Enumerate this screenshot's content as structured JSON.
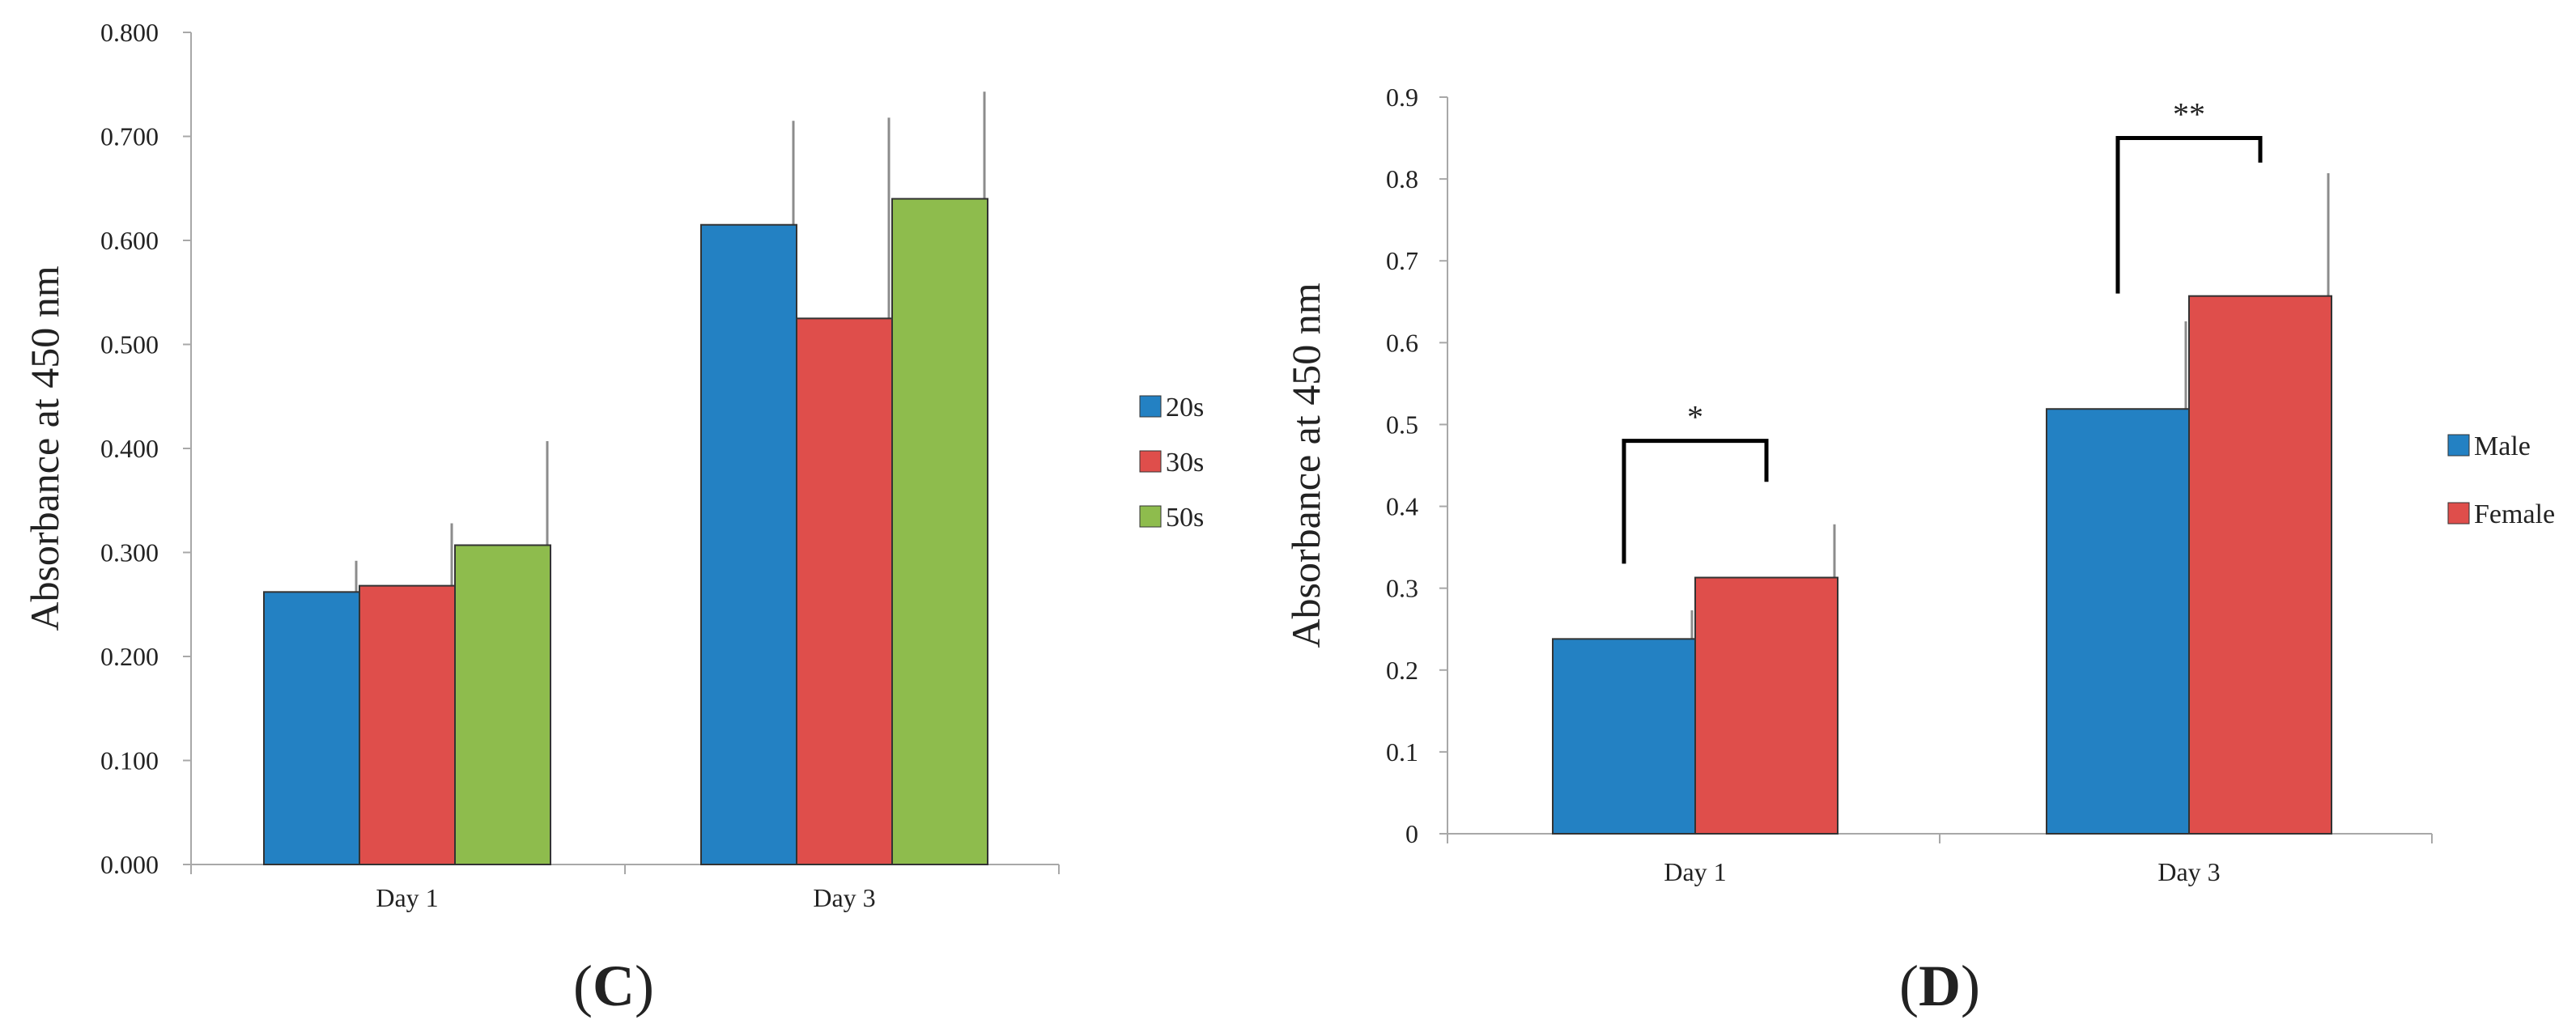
{
  "chart_data": [
    {
      "type": "bar",
      "panel_label": "(C)",
      "ylabel": "Absorbance at 450 nm",
      "xlabel": "",
      "categories": [
        "Day 1",
        "Day 3"
      ],
      "ylim": [
        0,
        0.8
      ],
      "ystep": 0.1,
      "ytick_labels": [
        "0.000",
        "0.100",
        "0.200",
        "0.300",
        "0.400",
        "0.500",
        "0.600",
        "0.700",
        "0.800"
      ],
      "legend_position": "right",
      "series": [
        {
          "name": "20s",
          "color": "#2381c3",
          "values": [
            0.262,
            0.615
          ],
          "errors": [
            0.03,
            0.1
          ]
        },
        {
          "name": "30s",
          "color": "#df4e4b",
          "values": [
            0.268,
            0.525
          ],
          "errors": [
            0.06,
            0.193
          ]
        },
        {
          "name": "50s",
          "color": "#8ebc4d",
          "values": [
            0.307,
            0.64
          ],
          "errors": [
            0.1,
            0.103
          ]
        }
      ],
      "annotations": []
    },
    {
      "type": "bar",
      "panel_label": "(D)",
      "ylabel": "Absorbance at 450 nm",
      "xlabel": "",
      "categories": [
        "Day 1",
        "Day 3"
      ],
      "ylim": [
        0,
        0.9
      ],
      "ystep": 0.1,
      "ytick_labels": [
        "0",
        "0.1",
        "0.2",
        "0.3",
        "0.4",
        "0.5",
        "0.6",
        "0.7",
        "0.8",
        "0.9"
      ],
      "legend_position": "right",
      "series": [
        {
          "name": "Male",
          "color": "#2381c3",
          "values": [
            0.238,
            0.519
          ],
          "errors": [
            0.035,
            0.107
          ]
        },
        {
          "name": "Female",
          "color": "#df4e4b",
          "values": [
            0.313,
            0.657
          ],
          "errors": [
            0.065,
            0.15
          ]
        }
      ],
      "annotations": [
        {
          "category": "Day 1",
          "label": "*",
          "y": 0.48,
          "start": 0.33,
          "end": 0.43
        },
        {
          "category": "Day 3",
          "label": "**",
          "y": 0.85,
          "start": 0.66,
          "end": 0.82
        }
      ]
    }
  ]
}
